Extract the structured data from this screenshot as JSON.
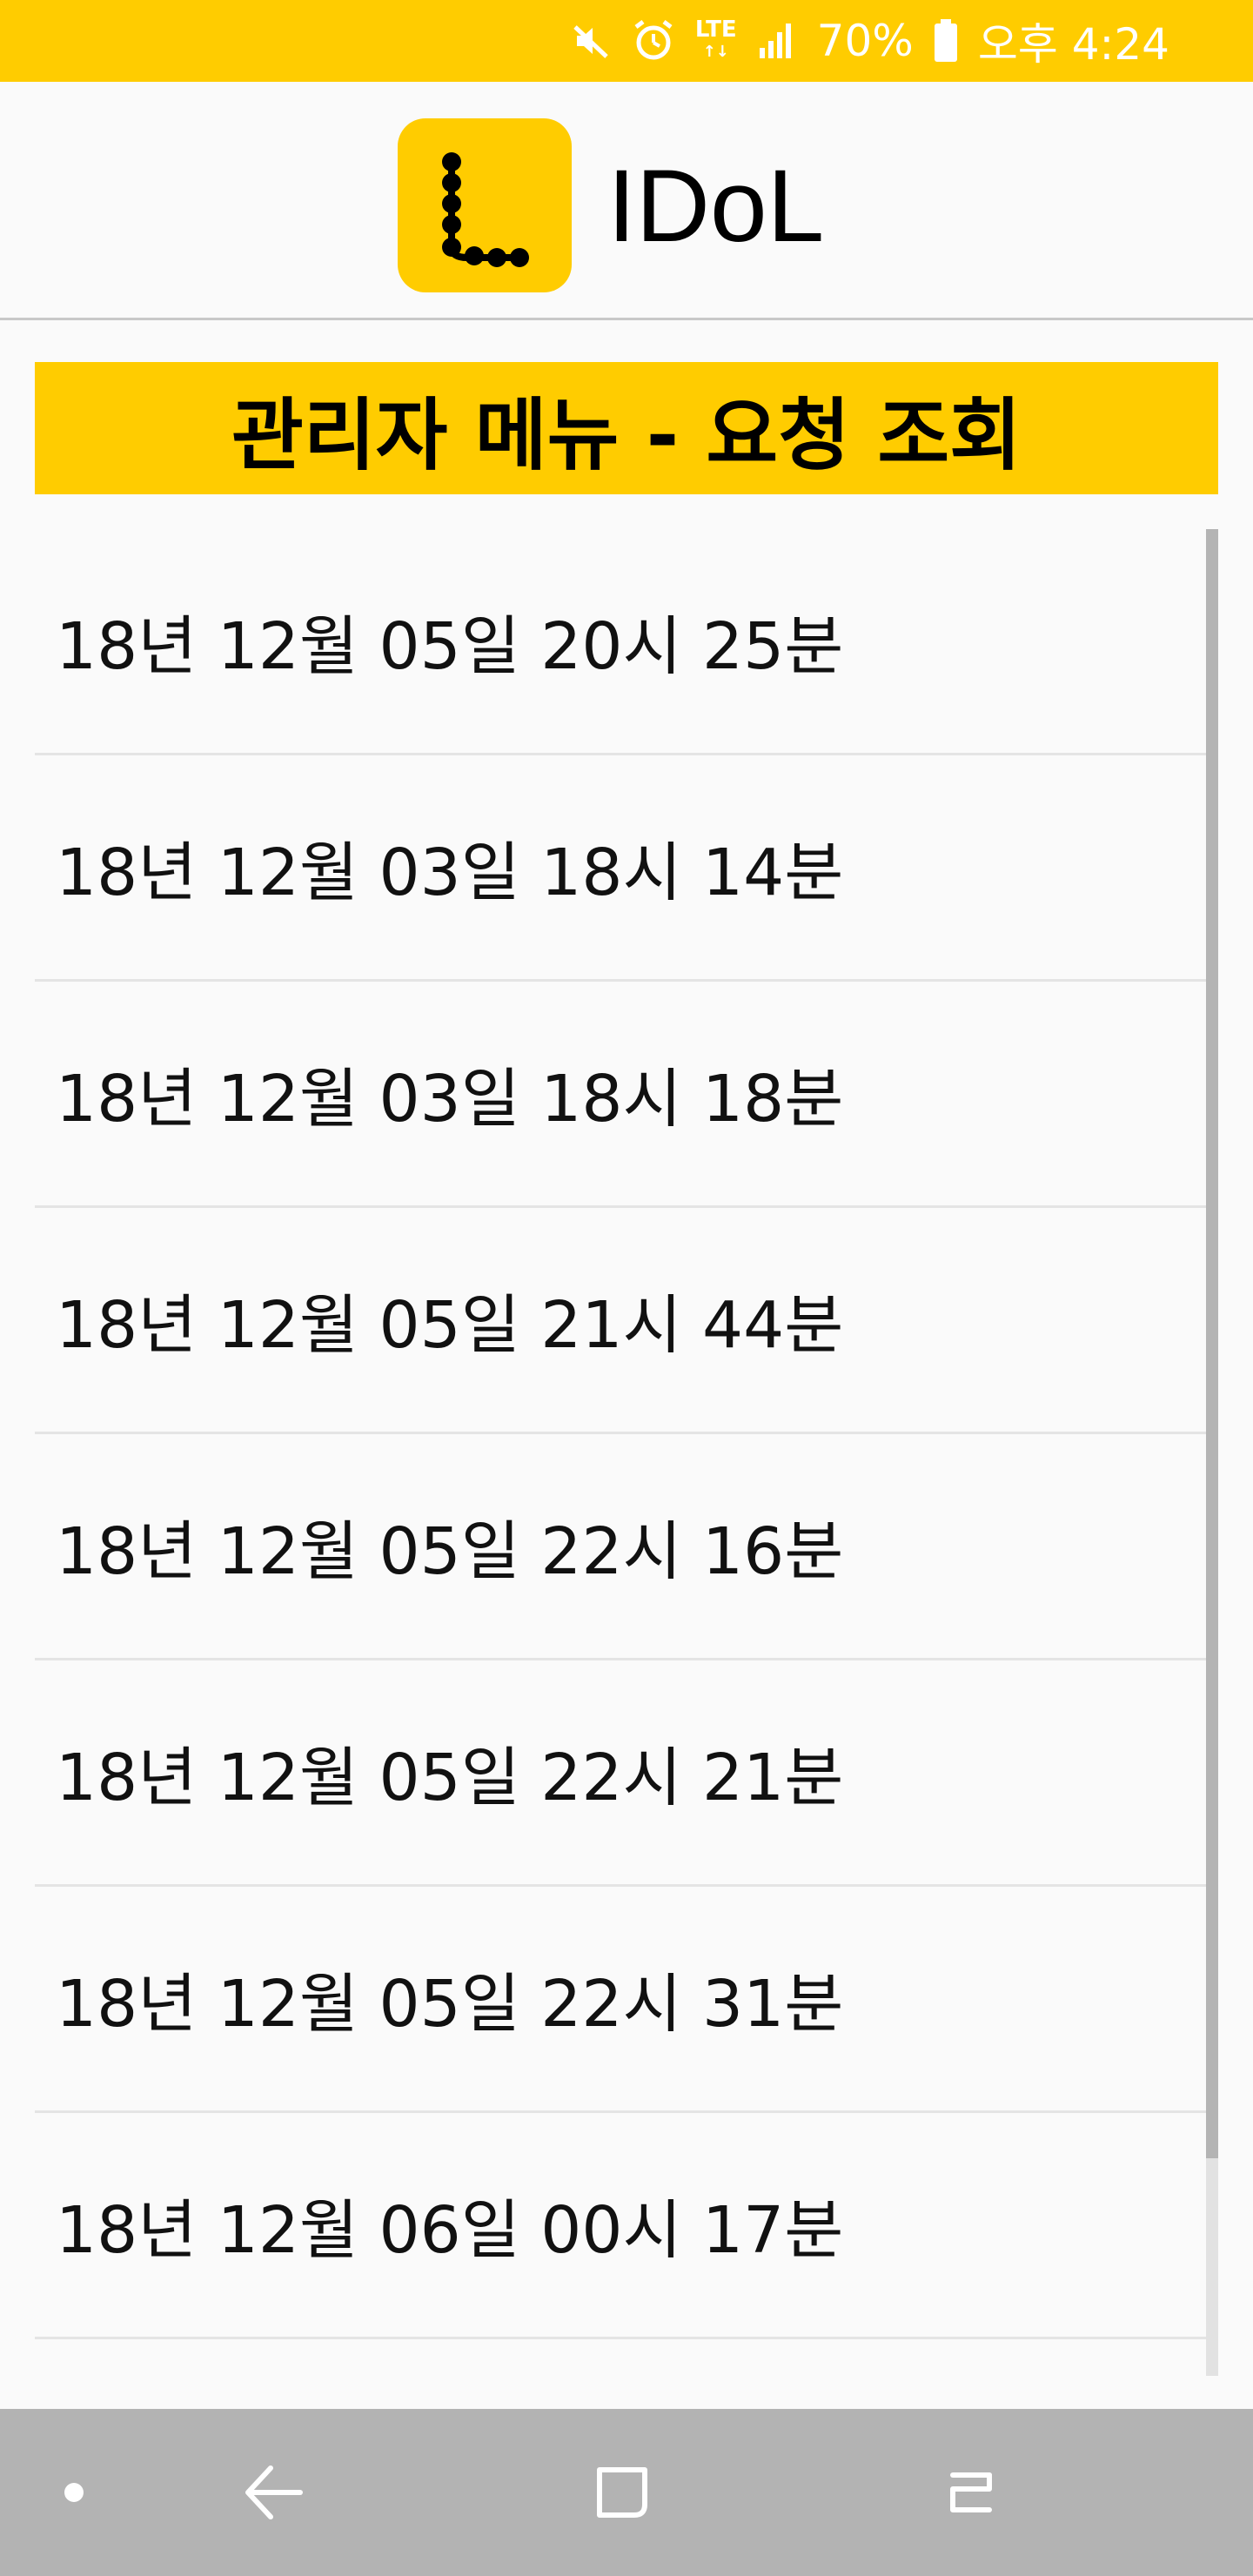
{
  "status_bar": {
    "network": "LTE",
    "battery": "70%",
    "time": "오후 4:24",
    "icons": [
      "mute-icon",
      "alarm-icon",
      "lte-icon",
      "signal-icon",
      "battery-icon"
    ]
  },
  "header": {
    "app_name": "IDoL",
    "logo_icon": "idol-logo-icon"
  },
  "banner": {
    "title": "관리자 메뉴 - 요청 조회"
  },
  "requests": [
    {
      "label": "18년 12월 05일 20시 25분"
    },
    {
      "label": "18년 12월 03일 18시 14분"
    },
    {
      "label": "18년 12월 03일 18시 18분"
    },
    {
      "label": "18년 12월 05일 21시 44분"
    },
    {
      "label": "18년 12월 05일 22시 16분"
    },
    {
      "label": "18년 12월 05일 22시 21분"
    },
    {
      "label": "18년 12월 05일 22시 31분"
    },
    {
      "label": "18년 12월 06일 00시 17분"
    }
  ],
  "nav_bar": {
    "icons": [
      "dot-icon",
      "back-icon",
      "home-icon",
      "recents-icon"
    ]
  },
  "colors": {
    "accent": "#ffcc00",
    "background": "#fafafa",
    "nav_bar": "#b3b3b3"
  }
}
